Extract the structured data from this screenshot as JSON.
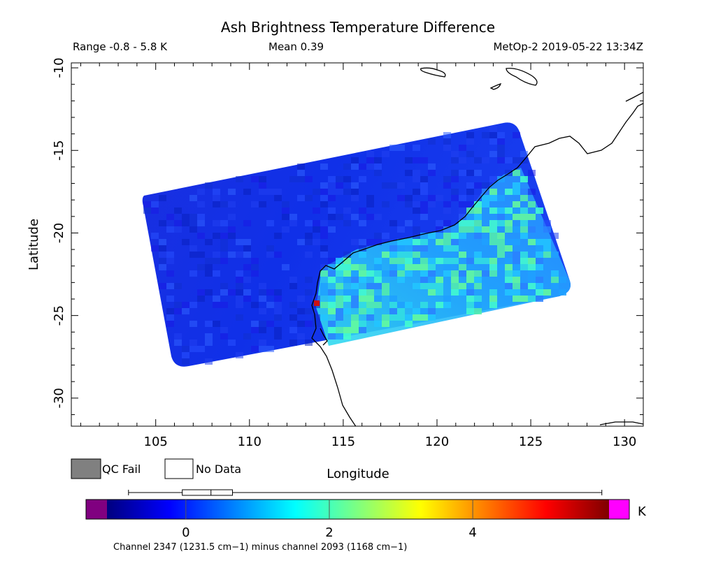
{
  "header": {
    "title": "Ash Brightness Temperature Difference",
    "range_label": "Range -0.8 - 5.8 K",
    "mean_label": "Mean 0.39",
    "satellite_label": "MetOp-2 2019-05-22 13:34Z"
  },
  "axes": {
    "x_label": "Longitude",
    "y_label": "Latitude",
    "x_ticks": [
      "105",
      "110",
      "115",
      "120",
      "125",
      "130"
    ],
    "y_ticks": [
      "-10",
      "-15",
      "-20",
      "-25",
      "-30"
    ],
    "lon_range": [
      100.5,
      131
    ],
    "lat_range": [
      -31.7,
      -9.7
    ]
  },
  "legend": {
    "qc_fail_label": "QC Fail",
    "no_data_label": "No Data",
    "qc_fail_color": "#808080",
    "no_data_color": "#ffffff"
  },
  "colorbar": {
    "unit": "K",
    "ticks": [
      "0",
      "2",
      "4"
    ],
    "caption": "Channel 2347 (1231.5 cm−1) minus channel 2093 (1168 cm−1)",
    "under_color": "#800080",
    "over_color": "#ff00ff",
    "value_range": [
      -1.1,
      5.9
    ],
    "colors": [
      "#00007f",
      "#0000ff",
      "#007fff",
      "#00ffff",
      "#7fff7f",
      "#ffff00",
      "#ff7f00",
      "#ff0000",
      "#7f0000"
    ]
  },
  "box_plot": {
    "min": -0.8,
    "q1": -0.05,
    "median": 0.35,
    "q3": 0.65,
    "max": 5.8
  }
}
